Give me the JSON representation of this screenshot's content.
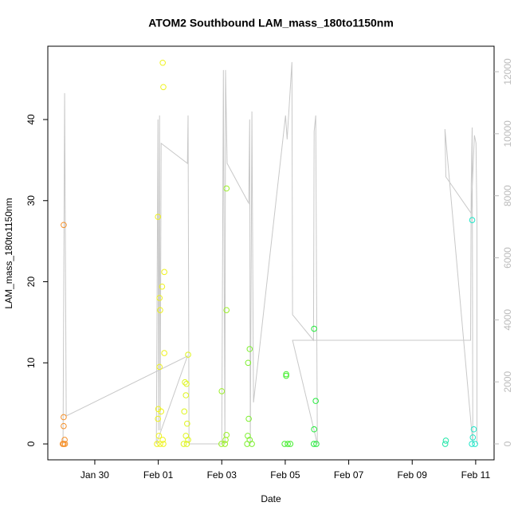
{
  "chart_data": {
    "type": "scatter",
    "title": "ATOM2 Southbound LAM_mass_180to1150nm",
    "xlabel": "Date",
    "ylabel": "LAM_mass_180to1150nm",
    "xlim": [
      28.52,
      42.58
    ],
    "ylim": [
      -1.96,
      49.04
    ],
    "y2lim": [
      -514,
      12822
    ],
    "xticks": [
      {
        "value": 30,
        "label": "Jan 30"
      },
      {
        "value": 32,
        "label": "Feb 01"
      },
      {
        "value": 34,
        "label": "Feb 03"
      },
      {
        "value": 36,
        "label": "Feb 05"
      },
      {
        "value": 38,
        "label": "Feb 07"
      },
      {
        "value": 40,
        "label": "Feb 09"
      },
      {
        "value": 42,
        "label": "Feb 11"
      }
    ],
    "yticks": [
      0,
      10,
      20,
      30,
      40
    ],
    "y2ticks": [
      0,
      2000,
      4000,
      6000,
      8000,
      10000,
      12000
    ],
    "series": [
      {
        "color": "#f5902a",
        "x": [
          29.02,
          29.02,
          29.02,
          29.05,
          28.99,
          29.02,
          29.06
        ],
        "values": [
          27,
          3.3,
          2.2,
          0.5,
          0,
          0,
          0
        ]
      },
      {
        "color": "#eef21e",
        "x": [
          32.14,
          32.16,
          31.99,
          32.19,
          32.12,
          32.04,
          32.06,
          32.19,
          32.04,
          32.0,
          32.09,
          31.99,
          32.02,
          32.14,
          31.96,
          32.06,
          32.16
        ],
        "values": [
          47,
          44,
          28,
          21.2,
          19.4,
          18,
          16.5,
          11.2,
          9.5,
          4.3,
          4,
          3.1,
          1,
          0.5,
          0,
          0,
          0
        ]
      },
      {
        "color": "#def51e",
        "x": [
          32.94,
          32.84,
          32.89,
          32.87,
          32.82,
          32.91,
          32.87,
          32.94,
          32.8,
          32.9
        ],
        "values": [
          11,
          7.6,
          7.4,
          6,
          4,
          2.5,
          1,
          0.5,
          0,
          0
        ]
      },
      {
        "color": "#9bf028",
        "x": [
          34.15,
          34.15,
          34.0,
          34.15,
          34.12,
          33.99,
          34.1
        ],
        "values": [
          31.5,
          16.5,
          6.5,
          1.1,
          0.5,
          0,
          0
        ]
      },
      {
        "color": "#7ef030",
        "x": [
          34.88,
          34.83,
          34.85,
          34.82,
          34.88,
          34.8,
          34.95
        ],
        "values": [
          11.7,
          10,
          3.1,
          1,
          0.5,
          0,
          0
        ]
      },
      {
        "color": "#44ee2e",
        "x": [
          36.03,
          36.03,
          35.98,
          36.08,
          36.16
        ],
        "values": [
          8.6,
          8.4,
          0,
          0,
          0
        ]
      },
      {
        "color": "#22ea3a",
        "x": [
          36.91,
          36.96,
          36.91,
          36.9,
          36.98
        ],
        "values": [
          14.2,
          5.3,
          1.8,
          0,
          0
        ]
      },
      {
        "color": "#20e6a8",
        "x": [
          41.06,
          41.04
        ],
        "values": [
          0.4,
          0
        ]
      },
      {
        "color": "#1ee6c8",
        "x": [
          41.89,
          41.94,
          41.91,
          41.88,
          41.98
        ],
        "values": [
          27.6,
          1.8,
          0.8,
          0,
          0
        ]
      }
    ],
    "line": {
      "color": "#c8c8c8",
      "axis": "y2",
      "x": [
        29.0,
        29.05,
        29.1,
        32.92,
        31.94,
        31.99,
        32.01,
        32.04,
        32.06,
        32.09,
        32.92,
        32.94,
        32.97,
        34.0,
        34.05,
        34.1,
        34.12,
        34.17,
        34.85,
        34.88,
        34.9,
        34.95,
        35.0,
        36.01,
        36.06,
        36.21,
        36.23,
        36.89,
        36.91,
        36.96,
        37.01,
        36.23,
        41.84,
        41.86,
        41.89,
        41.91,
        41.03,
        41.06,
        41.86,
        41.96,
        42.01,
        42.04,
        42.04
      ],
      "values": [
        0,
        11308,
        900,
        2830,
        0,
        10460,
        437,
        10588,
        437,
        9690,
        9046,
        10588,
        0,
        0,
        12053,
        0,
        12053,
        9046,
        7761,
        10460,
        0,
        10717,
        1336,
        10588,
        9817,
        12310,
        4163,
        3341,
        10074,
        10588,
        0,
        3341,
        3341,
        8350,
        10200,
        0,
        10150,
        8610,
        7430,
        9950,
        9700,
        7120,
        0
      ]
    }
  }
}
